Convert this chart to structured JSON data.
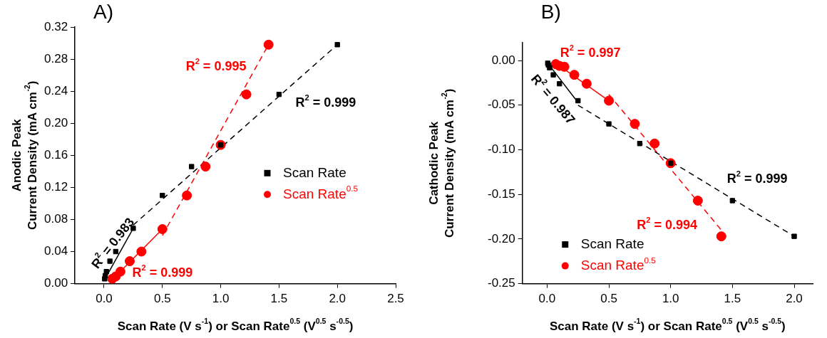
{
  "chart_data": [
    {
      "type": "scatter",
      "title": "A)",
      "xlabel": "Scan Rate (V s$^{-1}$) or Scan Rate$^{0.5}$ (V$^{0.5}$ s$^{-0.5}$)",
      "ylabel": "Anodic Peak\nCurrent Density (mA cm$^{-2}$)",
      "xlim": [
        -0.25,
        2.5
      ],
      "xticks": [
        {
          "value": 0,
          "label": "0.0"
        },
        {
          "value": 0.5,
          "label": "0.5"
        },
        {
          "value": 1,
          "label": "1.0"
        },
        {
          "value": 1.5,
          "label": "1.5"
        },
        {
          "value": 2,
          "label": "2.0"
        },
        {
          "value": 2.5,
          "label": "2.5"
        }
      ],
      "ylim": [
        0,
        0.32
      ],
      "yticks": [
        {
          "value": 0,
          "label": "0.00"
        },
        {
          "value": 0.04,
          "label": "0.04"
        },
        {
          "value": 0.08,
          "label": "0.08"
        },
        {
          "value": 0.12,
          "label": "0.12"
        },
        {
          "value": 0.16,
          "label": "0.16"
        },
        {
          "value": 0.2,
          "label": "0.20"
        },
        {
          "value": 0.24,
          "label": "0.24"
        },
        {
          "value": 0.28,
          "label": "0.28"
        },
        {
          "value": 0.32,
          "label": "0.32"
        }
      ],
      "grid": false,
      "legend": "right",
      "series": [
        {
          "name": "Scan Rate",
          "color": "#000000",
          "marker": "square",
          "x": [
            0.005,
            0.01,
            0.02,
            0.05,
            0.1,
            0.25,
            0.5,
            0.75,
            1.0,
            1.5,
            2.0
          ],
          "values": [
            0.006,
            0.01,
            0.015,
            0.028,
            0.04,
            0.069,
            0.11,
            0.146,
            0.173,
            0.236,
            0.298
          ]
        },
        {
          "name": "Scan Rate$^{0.5}$",
          "color": "#ff0000",
          "marker": "circle",
          "x": [
            0.07,
            0.1,
            0.14,
            0.22,
            0.32,
            0.5,
            0.71,
            0.87,
            1.0,
            1.22,
            1.41
          ],
          "values": [
            0.006,
            0.009,
            0.015,
            0.028,
            0.04,
            0.068,
            0.11,
            0.146,
            0.173,
            0.236,
            0.298
          ]
        },
        {
          "type": "line",
          "color": "#000000",
          "line_style": "solid",
          "x": [
            0.005,
            0.25
          ],
          "values": [
            0.005,
            0.069
          ]
        },
        {
          "type": "line",
          "color": "#000000",
          "line_style": "dashed",
          "x": [
            0.25,
            2.0
          ],
          "values": [
            0.073,
            0.298
          ]
        },
        {
          "type": "line",
          "color": "#ff0000",
          "line_style": "solid",
          "x": [
            0.07,
            0.5
          ],
          "values": [
            0.005,
            0.068
          ]
        },
        {
          "type": "line",
          "color": "#ff0000",
          "line_style": "dashed",
          "x": [
            0.5,
            1.41
          ],
          "values": [
            0.06,
            0.298
          ]
        }
      ],
      "annotations": [
        "R$^{2}$ = 0.995",
        "R$^{2}$ = 0.999",
        "R$^{2}$ = 0.983",
        "R$^{2}$ = 0.999"
      ]
    },
    {
      "type": "scatter",
      "title": "B)",
      "xlabel": "Scan Rate (V s$^{-1}$) or Scan Rate$^{0.5}$ (V$^{0.5}$ s$^{-0.5}$)",
      "ylabel": "Cathodic Peak\nCurrent Density (mA cm$^{-2}$)",
      "xlim": [
        -0.2,
        2.15
      ],
      "xticks": [
        {
          "value": 0,
          "label": "0.0"
        },
        {
          "value": 0.5,
          "label": "0.5"
        },
        {
          "value": 1,
          "label": "1.0"
        },
        {
          "value": 1.5,
          "label": "1.5"
        },
        {
          "value": 2,
          "label": "2.0"
        }
      ],
      "ylim": [
        -0.25,
        0.02
      ],
      "yticks": [
        {
          "value": 0,
          "label": "0.00"
        },
        {
          "value": -0.05,
          "label": "-0.05"
        },
        {
          "value": -0.1,
          "label": "-0.10"
        },
        {
          "value": -0.15,
          "label": "-0.15"
        },
        {
          "value": -0.2,
          "label": "-0.20"
        },
        {
          "value": -0.25,
          "label": "-0.25"
        }
      ],
      "grid": false,
      "legend": "bottom left",
      "series": [
        {
          "name": "Scan Rate",
          "color": "#000000",
          "marker": "square",
          "x": [
            0.005,
            0.01,
            0.02,
            0.05,
            0.1,
            0.25,
            0.5,
            0.75,
            1.0,
            1.5,
            2.0
          ],
          "values": [
            -0.003,
            -0.005,
            -0.008,
            -0.016,
            -0.026,
            -0.045,
            -0.071,
            -0.093,
            -0.115,
            -0.157,
            -0.197
          ]
        },
        {
          "name": "Scan Rate$^{0.5}$",
          "color": "#ff0000",
          "marker": "circle",
          "x": [
            0.07,
            0.1,
            0.14,
            0.22,
            0.32,
            0.5,
            0.71,
            0.87,
            1.0,
            1.22,
            1.41
          ],
          "values": [
            -0.004,
            -0.006,
            -0.007,
            -0.016,
            -0.026,
            -0.045,
            -0.071,
            -0.093,
            -0.115,
            -0.157,
            -0.197
          ]
        },
        {
          "type": "line",
          "color": "#000000",
          "line_style": "solid",
          "x": [
            0.0,
            0.25
          ],
          "values": [
            -0.002,
            -0.047
          ]
        },
        {
          "type": "line",
          "color": "#000000",
          "line_style": "dashed",
          "x": [
            0.25,
            2.0
          ],
          "values": [
            -0.05,
            -0.197
          ]
        },
        {
          "type": "line",
          "color": "#ff0000",
          "line_style": "solid",
          "x": [
            0.07,
            0.5
          ],
          "values": [
            -0.003,
            -0.045
          ]
        },
        {
          "type": "line",
          "color": "#ff0000",
          "line_style": "dashed",
          "x": [
            0.5,
            1.41
          ],
          "values": [
            -0.038,
            -0.19
          ]
        }
      ],
      "annotations": [
        "R$^{2}$ = 0.997",
        "R$^{2}$ = 0.987",
        "R$^{2}$ = 0.999",
        "R$^{2}$ = 0.994"
      ]
    }
  ]
}
